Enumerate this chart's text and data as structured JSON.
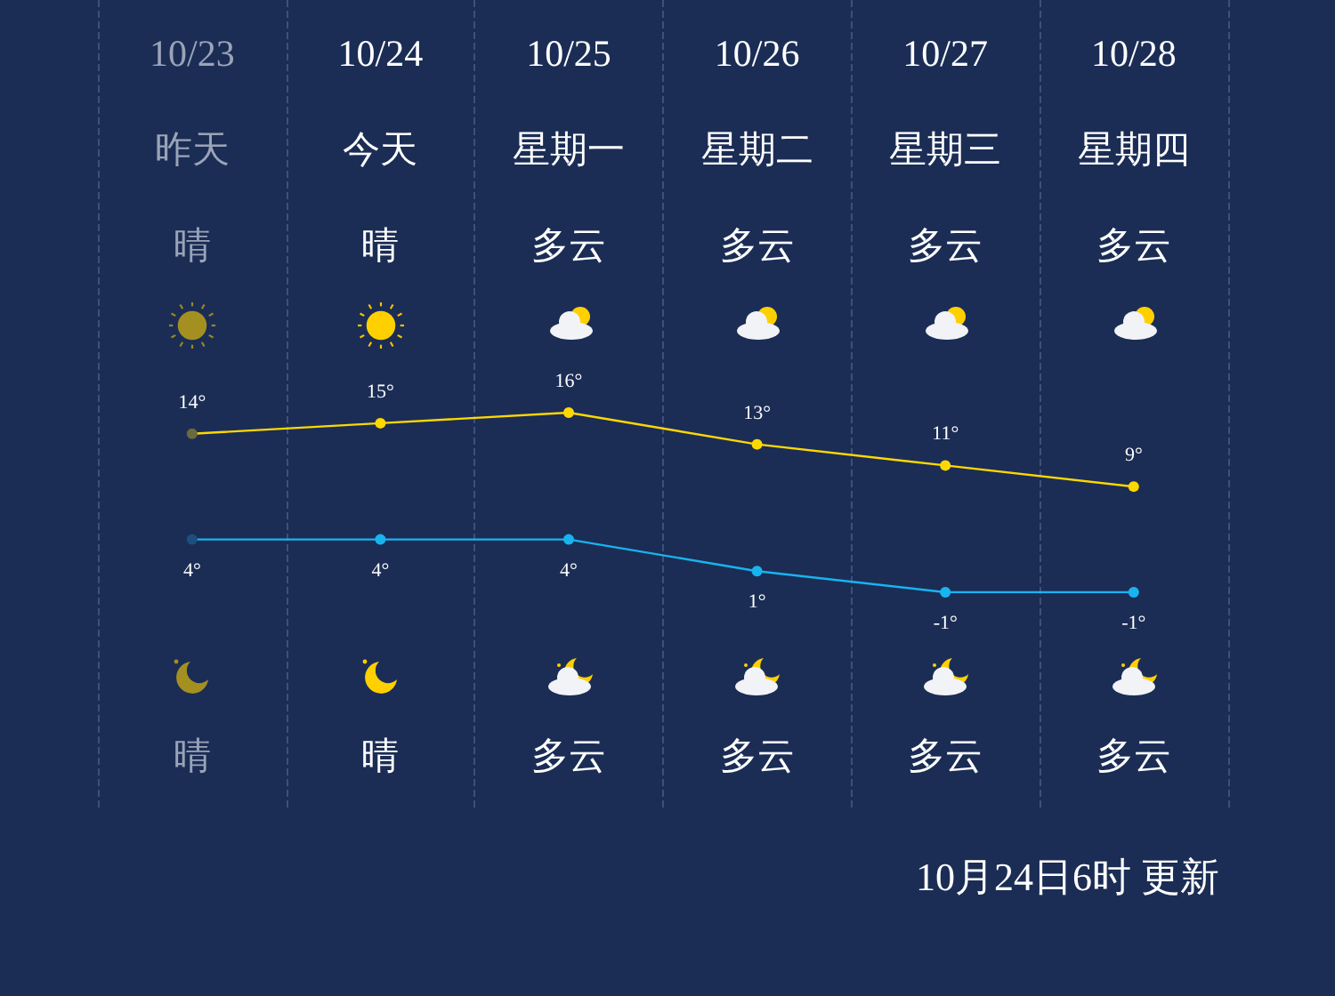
{
  "chart_data": {
    "type": "line",
    "categories": [
      "10/23",
      "10/24",
      "10/25",
      "10/26",
      "10/27",
      "10/28"
    ],
    "series": [
      {
        "color": "#ffd800",
        "colors": [
          "#6b6a3c",
          "#ffd800",
          "#ffd800",
          "#ffd800",
          "#ffd800",
          "#ffd800"
        ],
        "values": [
          14,
          15,
          16,
          13,
          11,
          9
        ],
        "value_labels": [
          "14°",
          "15°",
          "16°",
          "13°",
          "11°",
          "9°"
        ]
      },
      {
        "color": "#18b4ef",
        "colors": [
          "#1b4f7e",
          "#18b4ef",
          "#18b4ef",
          "#18b4ef",
          "#18b4ef",
          "#18b4ef"
        ],
        "values": [
          4,
          4,
          4,
          1,
          -1,
          -1
        ],
        "value_labels": [
          "4°",
          "4°",
          "4°",
          "1°",
          "-1°",
          "-1°"
        ]
      }
    ],
    "marker": "circle",
    "grid": "x",
    "annotations": [
      "昨天",
      "今天",
      "星期一",
      "星期二",
      "星期三",
      "星期四",
      "晴",
      "晴",
      "多云",
      "多云",
      "多云",
      "多云",
      "晴",
      "晴",
      "多云",
      "多云",
      "多云",
      "多云",
      "10月24日6时 更新"
    ]
  }
}
